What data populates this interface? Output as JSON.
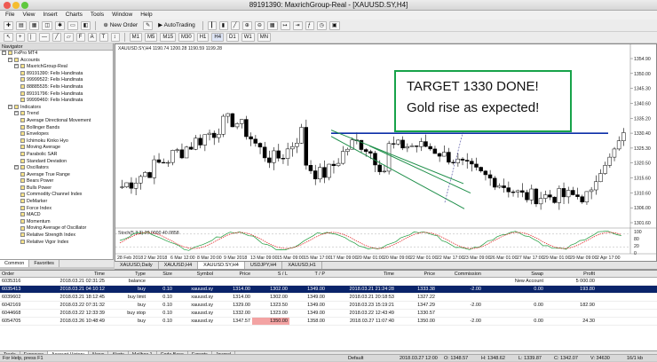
{
  "window": {
    "title": "89191390: MaxrichGroup-Real - [XAUUSD.SY,H4]"
  },
  "menu": [
    "File",
    "View",
    "Insert",
    "Charts",
    "Tools",
    "Window",
    "Help"
  ],
  "toolbar": {
    "new_order": "New Order",
    "autotrading": "AutoTrading",
    "timeframes": [
      "M1",
      "M5",
      "M15",
      "M30",
      "H1",
      "H4",
      "D1",
      "W1",
      "MN"
    ]
  },
  "navigator": {
    "title": "Navigator",
    "items": [
      {
        "label": "FxPro MT4",
        "level": 0
      },
      {
        "label": "Accounts",
        "level": 1
      },
      {
        "label": "MaxrichGroup-Real",
        "level": 2
      },
      {
        "label": "89191390: Felix Handinata",
        "level": 3
      },
      {
        "label": "99999522: Felix Handinata",
        "level": 3
      },
      {
        "label": "88885535: Felix Handinata",
        "level": 3
      },
      {
        "label": "89191796: Felix Handinata",
        "level": 3
      },
      {
        "label": "99999460: Felix Handinata",
        "level": 3
      },
      {
        "label": "Indicators",
        "level": 1
      },
      {
        "label": "Trend",
        "level": 2
      },
      {
        "label": "Average Directional Movement",
        "level": 3
      },
      {
        "label": "Bollinger Bands",
        "level": 3
      },
      {
        "label": "Envelopes",
        "level": 3
      },
      {
        "label": "Ichimoku Kinko Hyo",
        "level": 3
      },
      {
        "label": "Moving Average",
        "level": 3
      },
      {
        "label": "Parabolic SAR",
        "level": 3
      },
      {
        "label": "Standard Deviation",
        "level": 3
      },
      {
        "label": "Oscillators",
        "level": 2
      },
      {
        "label": "Average True Range",
        "level": 3
      },
      {
        "label": "Bears Power",
        "level": 3
      },
      {
        "label": "Bulls Power",
        "level": 3
      },
      {
        "label": "Commodity Channel Index",
        "level": 3
      },
      {
        "label": "DeMarker",
        "level": 3
      },
      {
        "label": "Force Index",
        "level": 3
      },
      {
        "label": "MACD",
        "level": 3
      },
      {
        "label": "Momentum",
        "level": 3
      },
      {
        "label": "Moving Average of Oscillator",
        "level": 3
      },
      {
        "label": "Relative Strength Index",
        "level": 3
      },
      {
        "label": "Relative Vigor Index",
        "level": 3
      }
    ],
    "tabs": [
      "Common",
      "Favorites"
    ]
  },
  "chart": {
    "header": "XAUUSD.SY,H4  1190.74 1200.28 1190.59 1199.28",
    "stoch_label": "Stoch(5,3,3) 23.0000 40.0858",
    "price_labels": [
      "1354.90",
      "1350.00",
      "1345.30",
      "1340.60",
      "1335.20",
      "1330.40",
      "1325.30",
      "1320.50",
      "1315.60",
      "1310.60",
      "1306.00",
      "1301.60"
    ],
    "stoch_levels": [
      "100",
      "80",
      "20",
      "0"
    ],
    "time_labels": [
      "28 Feb 2018",
      "2 Mar 2018",
      "6 Mar 12:00",
      "8 Mar 20:00",
      "9 Mar 2018",
      "13 Mar 09:00",
      "15 Mar 09:00",
      "15 Mar 17:00",
      "17 Mar 09:00",
      "20 Mar 01:00",
      "20 Mar 09:00",
      "22 Mar 01:00",
      "22 Mar 17:00",
      "23 Mar 09:00",
      "26 Mar 01:00",
      "27 Mar 17:00",
      "29 Mar 01:00",
      "29 Mar 09:00",
      "2 Apr 17:00"
    ],
    "annotation_line1": "TARGET 1330 DONE!",
    "annotation_line2": "Gold rise as expected!",
    "tabs": [
      "XAUUSD,Daily",
      "XAUUSD,H4",
      "XAUUSD.SY,H4",
      "USDJPY,H4",
      "XAUUSD,H1"
    ]
  },
  "terminal": {
    "columns": [
      "Order",
      "Time",
      "Type",
      "Size",
      "Symbol",
      "Price",
      "S / L",
      "T / P",
      "Time",
      "Price",
      "Commission",
      "Swap",
      "Profit"
    ],
    "rows": [
      [
        "6035316",
        "2018.03.21 02:31:25",
        "balance",
        "",
        "",
        "",
        "",
        "",
        "",
        "",
        "",
        "New Account",
        "5 000.00"
      ],
      [
        "6035413",
        "2018.03.21 04:10:12",
        "buy",
        "0.10",
        "xauusd.sy",
        "1314.00",
        "1302.00",
        "1349.00",
        "2018.03.21 21:24:28",
        "1333.38",
        "-2.00",
        "0.00",
        "193.80"
      ],
      [
        "6039602",
        "2018.03.21 18:12:45",
        "buy limit",
        "0.10",
        "xauusd.sy",
        "1314.00",
        "1302.00",
        "1349.00",
        "2018.03.21 20:18:53",
        "1327.22",
        "",
        "",
        ""
      ],
      [
        "6042169",
        "2018.03.22 07:31:32",
        "buy",
        "0.10",
        "xauusd.sy",
        "1329.00",
        "1323.50",
        "1349.00",
        "2018.03.23 15:19:21",
        "1347.29",
        "-2.00",
        "0.00",
        "182.90"
      ],
      [
        "6044668",
        "2018.03.22 12:33:39",
        "buy stop",
        "0.10",
        "xauusd.sy",
        "1332.00",
        "1323.00",
        "1349.00",
        "2018.03.22 12:43:49",
        "1330.57",
        "",
        "",
        ""
      ],
      [
        "6054705",
        "2018.03.26 10:48:49",
        "buy",
        "0.10",
        "xauusd.sy",
        "1347.57",
        "1350.00",
        "1358.00",
        "2018.03.27 11:07:40",
        "1350.00",
        "-2.00",
        "0.00",
        "24.30"
      ]
    ],
    "tabs": [
      "Trade",
      "Exposure",
      "Account History",
      "News",
      "Alerts",
      "Mailbox",
      "Code Base",
      "Experts",
      "Journal"
    ],
    "mailbox_count": "1"
  },
  "status": {
    "help": "For Help, press F1",
    "profile": "Default",
    "time": "2018.03.27 12:00",
    "open": "O: 1348.57",
    "high": "H: 1348.62",
    "low": "L: 1339.87",
    "close": "C: 1342.07",
    "volume": "V: 34630",
    "traffic": "16/1 kb"
  },
  "colors": {
    "bull_candle": "#ffffff",
    "bear_candle": "#000000",
    "trend_blue": "#0b2ea8",
    "channel_green": "#1f8f4a",
    "annot_border": "#17a34a",
    "selected_row": "#0a246a"
  }
}
